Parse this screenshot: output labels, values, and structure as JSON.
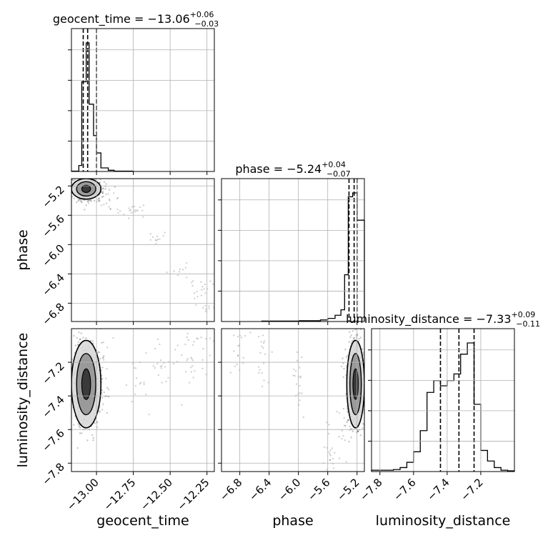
{
  "chart_data": {
    "type": "corner",
    "parameters": [
      {
        "name": "geocent_time",
        "label": "geocent_time",
        "median": -13.06,
        "plus": "+0.06",
        "minus": "−0.03",
        "range": [
          -13.17,
          -12.2
        ],
        "ticks": [
          -13.0,
          -12.75,
          -12.5,
          -12.25
        ],
        "tick_labels": [
          "−13.00",
          "−12.75",
          "−12.50",
          "−12.25"
        ],
        "quantiles": [
          -13.09,
          -13.06,
          -13.0
        ]
      },
      {
        "name": "phase",
        "label": "phase",
        "median": -5.24,
        "plus": "+0.04",
        "minus": "−0.07",
        "range": [
          -7.05,
          -5.1
        ],
        "ticks": [
          -6.8,
          -6.4,
          -6.0,
          -5.6,
          -5.2
        ],
        "tick_labels": [
          "−6.8",
          "−6.4",
          "−6.0",
          "−5.6",
          "−5.2"
        ],
        "quantiles": [
          -5.31,
          -5.24,
          -5.2
        ]
      },
      {
        "name": "luminosity_distance",
        "label": "luminosity_distance",
        "median": -7.33,
        "plus": "+0.09",
        "minus": "−0.11",
        "range": [
          -7.85,
          -7.0
        ],
        "ticks": [
          -7.8,
          -7.6,
          -7.4,
          -7.2
        ],
        "tick_labels": [
          "−7.8",
          "−7.6",
          "−7.4",
          "−7.2"
        ],
        "quantiles": [
          -7.44,
          -7.33,
          -7.24
        ]
      }
    ],
    "titles": [
      {
        "prefix": "geocent_time = −13.06",
        "sup": "+0.06",
        "sub": "−0.03"
      },
      {
        "prefix": "phase = −5.24",
        "sup": "+0.04",
        "sub": "−0.07"
      },
      {
        "prefix": "luminosity_distance = −7.33",
        "sup": "+0.09",
        "sub": "−0.11"
      }
    ],
    "axis_labels": {
      "x": [
        "geocent_time",
        "phase",
        "luminosity_distance"
      ],
      "y": [
        "phase",
        "luminosity_distance"
      ]
    },
    "histograms": {
      "geocent_time": {
        "bin_edges": [
          -13.17,
          -13.12,
          -13.1,
          -13.07,
          -13.05,
          -13.02,
          -13.0,
          -12.97,
          -12.92,
          -12.88,
          -12.82,
          -12.75
        ],
        "counts": [
          1,
          20,
          300,
          430,
          225,
          120,
          62,
          12,
          4,
          1,
          1
        ]
      },
      "phase": {
        "bin_edges": [
          -6.5,
          -6.0,
          -5.7,
          -5.6,
          -5.5,
          -5.42,
          -5.37,
          -5.32,
          -5.26,
          -5.2,
          -5.1
        ],
        "counts": [
          1,
          2,
          4,
          8,
          16,
          30,
          120,
          320,
          330,
          260
        ]
      },
      "luminosity_distance": {
        "bin_edges": [
          -7.85,
          -7.72,
          -7.68,
          -7.64,
          -7.6,
          -7.56,
          -7.52,
          -7.48,
          -7.44,
          -7.4,
          -7.36,
          -7.32,
          -7.28,
          -7.24,
          -7.2,
          -7.16,
          -7.12,
          -7.08,
          -7.04,
          -7.0
        ],
        "counts": [
          2,
          3,
          6,
          14,
          30,
          62,
          120,
          138,
          130,
          138,
          148,
          178,
          195,
          102,
          32,
          16,
          6,
          2,
          1
        ]
      }
    },
    "scatter": [
      {
        "x": "geocent_time",
        "y": "phase",
        "center": [
          -13.07,
          -5.24
        ],
        "spread": [
          0.05,
          0.07
        ],
        "tail": [
          [
            -13.0,
            -5.35
          ],
          [
            -12.9,
            -5.45
          ],
          [
            -12.75,
            -5.55
          ],
          [
            -12.6,
            -5.9
          ],
          [
            -12.45,
            -6.3
          ],
          [
            -12.3,
            -6.6
          ],
          [
            -12.25,
            -6.9
          ]
        ]
      },
      {
        "x": "geocent_time",
        "y": "luminosity_distance",
        "center": [
          -13.07,
          -7.33
        ],
        "spread": [
          0.05,
          0.13
        ],
        "tail": [
          [
            -12.95,
            -7.25
          ],
          [
            -12.7,
            -7.3
          ],
          [
            -12.55,
            -7.25
          ],
          [
            -12.4,
            -7.15
          ],
          [
            -12.3,
            -7.1
          ]
        ]
      },
      {
        "x": "phase",
        "y": "luminosity_distance",
        "center": [
          -5.22,
          -7.33
        ],
        "spread": [
          0.06,
          0.13
        ],
        "tail": [
          [
            -5.4,
            -7.6
          ],
          [
            -5.55,
            -7.75
          ],
          [
            -6.0,
            -7.3
          ],
          [
            -6.5,
            -7.2
          ],
          [
            -6.8,
            -7.15
          ]
        ]
      }
    ],
    "grid": true
  }
}
